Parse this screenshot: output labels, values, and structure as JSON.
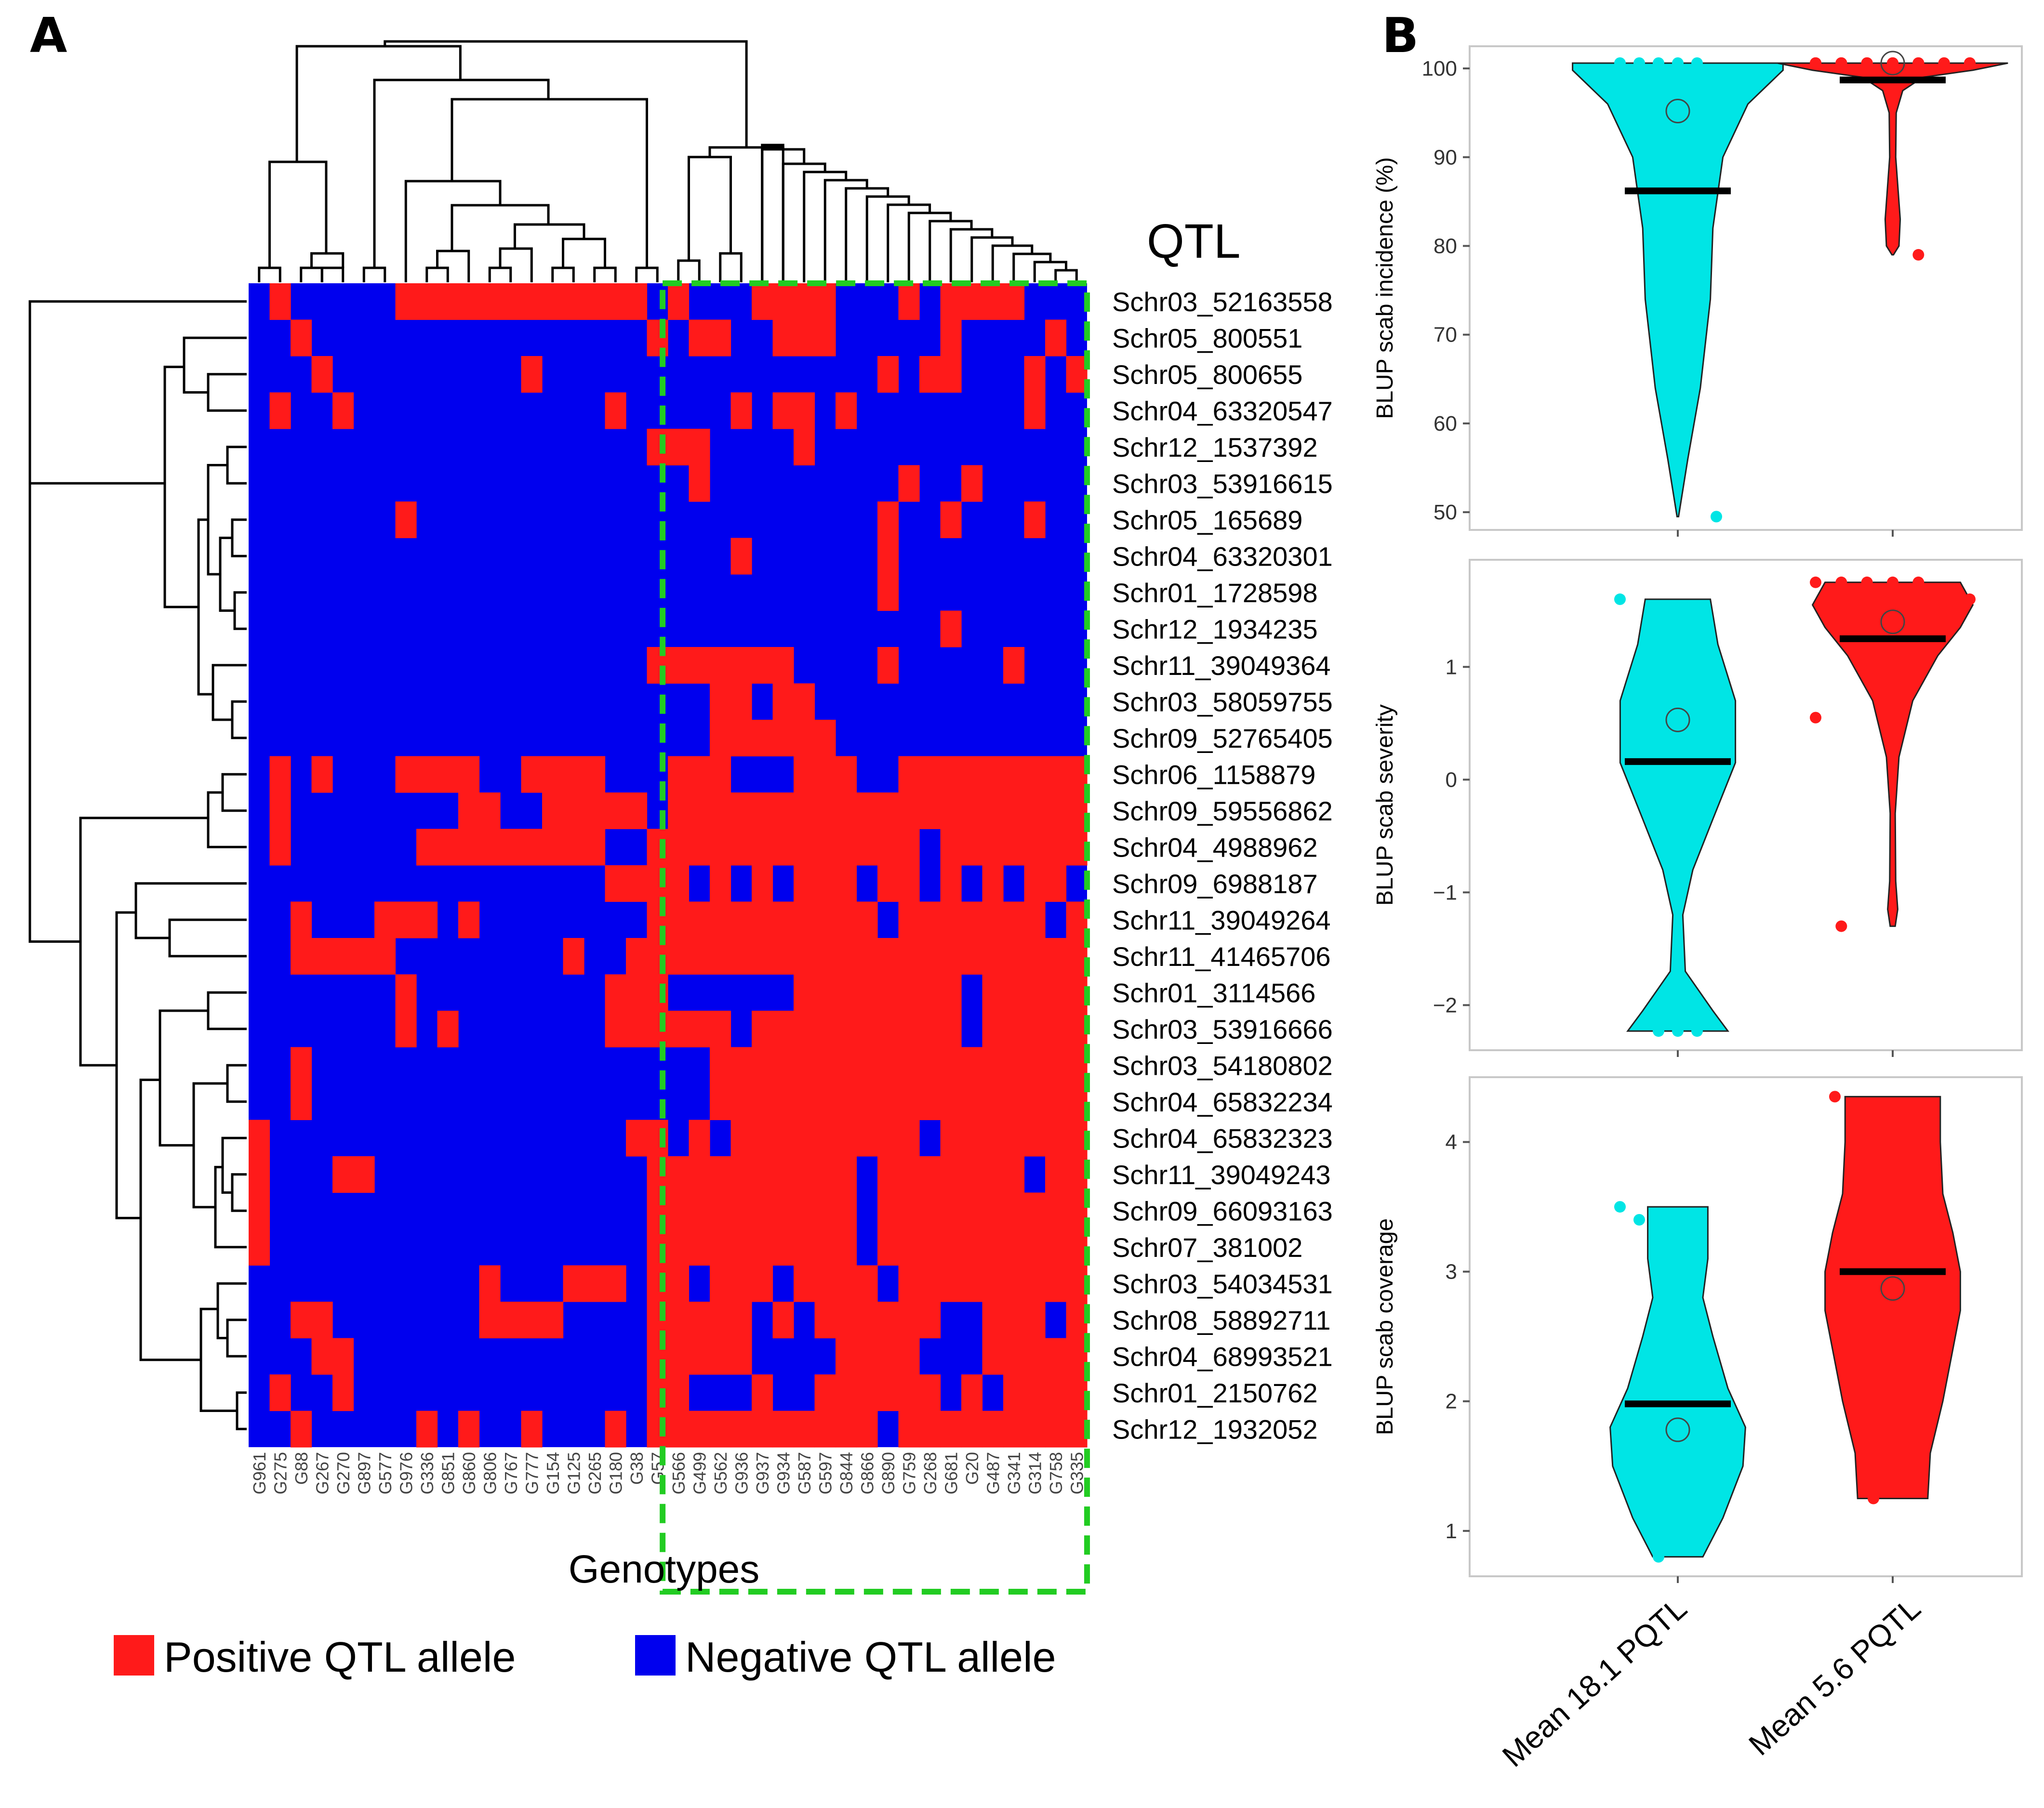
{
  "panel_a": {
    "letter": "A",
    "qtl_title": "QTL",
    "x_title": "Genotypes",
    "legend": [
      {
        "label": "Positive QTL allele",
        "color": "#ff1a1a"
      },
      {
        "label": "Negative QTL allele",
        "color": "#0000ee"
      }
    ]
  },
  "panel_b": {
    "letter": "B"
  },
  "chart_data": [
    {
      "type": "heatmap",
      "title": "",
      "xlabel": "Genotypes",
      "ylabel": "QTL",
      "colors": {
        "positive": "#ff1a1a",
        "negative": "#0000ee",
        "cluster_box": "#22cc22"
      },
      "genotypes": [
        "G961",
        "G275",
        "G88",
        "G267",
        "G270",
        "G897",
        "G577",
        "G976",
        "G336",
        "G851",
        "G860",
        "G806",
        "G767",
        "G777",
        "G154",
        "G125",
        "G265",
        "G180",
        "G38",
        "G57",
        "G566",
        "G499",
        "G562",
        "G936",
        "G937",
        "G934",
        "G587",
        "G597",
        "G844",
        "G866",
        "G890",
        "G759",
        "G268",
        "G681",
        "G20",
        "G487",
        "G341",
        "G314",
        "G758",
        "G335"
      ],
      "qtl": [
        "Schr03_52163558",
        "Schr05_800551",
        "Schr05_800655",
        "Schr04_63320547",
        "Schr12_1537392",
        "Schr03_53916615",
        "Schr05_165689",
        "Schr04_63320301",
        "Schr01_1728598",
        "Schr12_1934235",
        "Schr11_39049364",
        "Schr03_58059755",
        "Schr09_52765405",
        "Schr06_1158879",
        "Schr09_59556862",
        "Schr04_4988962",
        "Schr09_6988187",
        "Schr11_39049264",
        "Schr11_41465706",
        "Schr01_3114566",
        "Schr03_53916666",
        "Schr03_54180802",
        "Schr04_65832234",
        "Schr04_65832323",
        "Schr11_39049243",
        "Schr09_66093163",
        "Schr07_381002",
        "Schr03_54034531",
        "Schr08_58892711",
        "Schr04_68993521",
        "Schr01_2150762",
        "Schr12_1932052"
      ],
      "matrix": [
        "0100000111111111111010001111000101111000",
        "0010000000000000000101100111000001000010",
        "0001000000000100000000000000001011000101",
        "0100100000000000010000010110100000000100",
        "0000000000000000000111000010000000000000",
        "0000000000000000000001000000000100100000",
        "0000000100000000000000000000001001000100",
        "0000000000000000000000010000001000000000",
        "0000000000000000000000000000001000000000",
        "0000000000000000000000000000000001000000",
        "0000000000000000000111111100001000001000",
        "0000000000000000000000110110000000000000",
        "0000000000000000000000111111000000000000",
        "0101000111100111100011100011100111111111",
        "0100000000110011111011111111111111111111",
        "0100000011111111100111111111111101111111",
        "0000000000000000011110101011101101010110",
        "0010001110100000000111111111110111111101",
        "0011111000000001001111111111111111111111",
        "0000000100000000011100000011111111011111",
        "0000000101000000011111101111111111011111",
        "0010000000000000000000111111111111111111",
        "0010000000000000000000111111111111111111",
        "1000000000000000001101011111111101111111",
        "1000110000000000000111111111101111111011",
        "1000000000000000000111111111101111111111",
        "1000000000000000000111111111101111111111",
        "0000000000010001110110111011110111111111",
        "0011000000011110000111110101111110011101",
        "0001100000000000000111110000111100011111",
        "0100100000000000000110001001111110101111",
        "0010000010100100010111111111110111111111"
      ],
      "cluster_box": {
        "from_genotype": "G57",
        "to_genotype": "G335"
      }
    },
    {
      "type": "violin",
      "title": "",
      "xlabel": "",
      "ylabel": "BLUP scab incidence (%)",
      "categories": [
        "Mean 18.1 PQTL",
        "Mean 5.6 PQTL"
      ],
      "y_ticks": [
        50,
        60,
        70,
        80,
        90,
        100
      ],
      "ylim": [
        48,
        102.5
      ],
      "series": [
        {
          "name": "Mean 18.1 PQTL",
          "color": "#00e5e5",
          "median": 86.2,
          "mean": 95.2,
          "profile": [
            [
              49.5,
              0.3
            ],
            [
              56,
              4
            ],
            [
              64,
              9
            ],
            [
              74,
              13
            ],
            [
              82,
              14
            ],
            [
              90,
              18
            ],
            [
              96,
              28
            ],
            [
              99.8,
              42
            ],
            [
              100.6,
              42
            ]
          ],
          "points": [
            100.6,
            100.6,
            100.6,
            100.6,
            100.6,
            49.5
          ]
        },
        {
          "name": "Mean 5.6 PQTL",
          "color": "#ff1a1a",
          "median": 98.7,
          "mean": 100.6,
          "profile": [
            [
              79,
              0.3
            ],
            [
              80,
              2.5
            ],
            [
              83,
              3
            ],
            [
              90,
              1.2
            ],
            [
              95,
              1.4
            ],
            [
              97.5,
              4
            ],
            [
              99,
              12
            ],
            [
              99.8,
              32
            ],
            [
              100.6,
              46
            ]
          ],
          "points": [
            100.6,
            100.6,
            100.6,
            100.6,
            100.6,
            100.6,
            100.6,
            100.6,
            100.6,
            100.6,
            100.6,
            100.6,
            100.6,
            100.6,
            100.6,
            100.6,
            100.6,
            100.6,
            100.6,
            100.6,
            100.6,
            100.6,
            100.6,
            100.6,
            100.6,
            79
          ]
        }
      ]
    },
    {
      "type": "violin",
      "title": "",
      "xlabel": "",
      "ylabel": "BLUP scab severity",
      "categories": [
        "Mean 18.1 PQTL",
        "Mean 5.6 PQTL"
      ],
      "y_ticks": [
        -2,
        -1,
        0,
        1
      ],
      "ylim": [
        -2.4,
        1.95
      ],
      "series": [
        {
          "name": "Mean 18.1 PQTL",
          "color": "#00e5e5",
          "median": 0.16,
          "mean": 0.53,
          "profile": [
            [
              -2.23,
              20
            ],
            [
              -2.05,
              14
            ],
            [
              -1.7,
              3
            ],
            [
              -1.2,
              2
            ],
            [
              -0.8,
              6
            ],
            [
              -0.35,
              14
            ],
            [
              0.15,
              23
            ],
            [
              0.7,
              23
            ],
            [
              1.2,
              16
            ],
            [
              1.6,
              13
            ]
          ],
          "points": [
            1.6,
            -0.08,
            -2.23,
            -2.23,
            -2.23
          ]
        },
        {
          "name": "Mean 5.6 PQTL",
          "color": "#ff1a1a",
          "median": 1.25,
          "mean": 1.4,
          "profile": [
            [
              -1.3,
              1
            ],
            [
              -1.15,
              2
            ],
            [
              -0.9,
              1.2
            ],
            [
              -0.3,
              1
            ],
            [
              0.2,
              2.5
            ],
            [
              0.7,
              8
            ],
            [
              1.1,
              18
            ],
            [
              1.35,
              27
            ],
            [
              1.55,
              32
            ],
            [
              1.75,
              27
            ]
          ],
          "points": [
            1.75,
            1.75,
            1.75,
            1.75,
            1.75,
            1.6,
            1.6,
            0.55,
            -1.3
          ]
        }
      ]
    },
    {
      "type": "violin",
      "title": "",
      "xlabel": "",
      "ylabel": "BLUP scab coverage",
      "categories": [
        "Mean 18.1 PQTL",
        "Mean 5.6 PQTL"
      ],
      "y_ticks": [
        1,
        2,
        3,
        4
      ],
      "ylim": [
        0.65,
        4.5
      ],
      "series": [
        {
          "name": "Mean 18.1 PQTL",
          "color": "#00e5e5",
          "median": 1.98,
          "mean": 1.78,
          "profile": [
            [
              0.8,
              10
            ],
            [
              1.1,
              18
            ],
            [
              1.5,
              26
            ],
            [
              1.8,
              27
            ],
            [
              2.1,
              20
            ],
            [
              2.5,
              14
            ],
            [
              2.8,
              10
            ],
            [
              3.1,
              12
            ],
            [
              3.3,
              12
            ],
            [
              3.5,
              12
            ]
          ],
          "points": [
            3.5,
            3.4,
            0.8
          ]
        },
        {
          "name": "Mean 5.6 PQTL",
          "color": "#ff1a1a",
          "median": 3.0,
          "mean": 2.87,
          "profile": [
            [
              1.25,
              14
            ],
            [
              1.6,
              15
            ],
            [
              2.0,
              20
            ],
            [
              2.4,
              24
            ],
            [
              2.7,
              27
            ],
            [
              3.0,
              27
            ],
            [
              3.3,
              24
            ],
            [
              3.6,
              20
            ],
            [
              4.0,
              19
            ],
            [
              4.35,
              19
            ]
          ],
          "points": [
            4.35,
            2.68,
            1.25
          ]
        }
      ]
    }
  ]
}
